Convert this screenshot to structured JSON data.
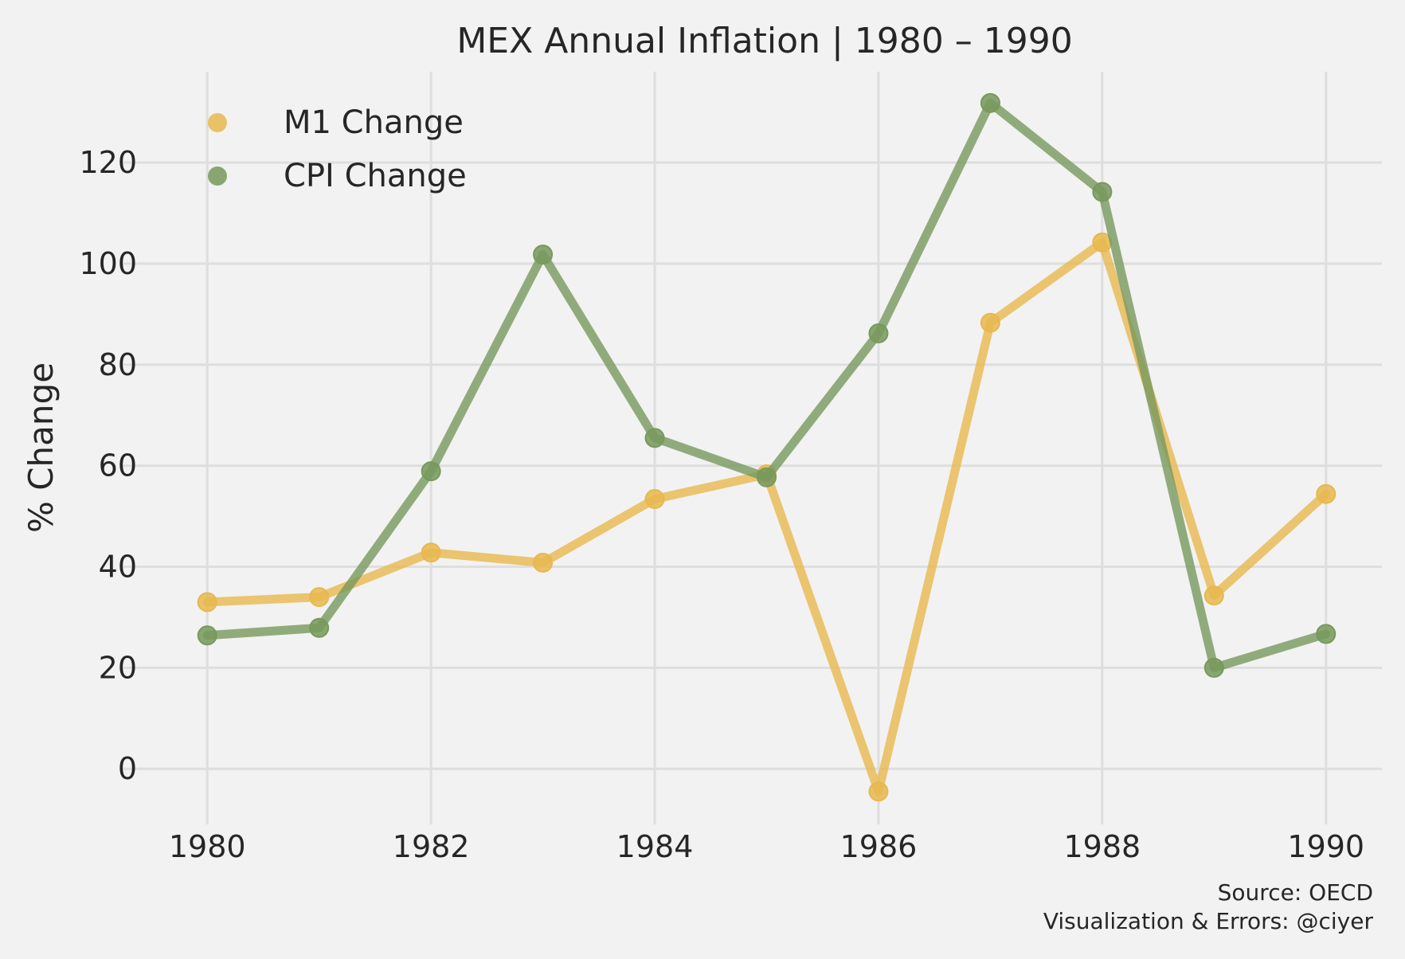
{
  "chart_data": {
    "type": "line",
    "title": "MEX Annual Inflation | 1980 – 1990",
    "xlabel": "",
    "ylabel": "% Change",
    "x": [
      1980,
      1981,
      1982,
      1983,
      1984,
      1985,
      1986,
      1987,
      1988,
      1989,
      1990
    ],
    "xlim": [
      1979.5,
      1990.5
    ],
    "ylim": [
      -11,
      138
    ],
    "x_ticks": [
      "1980",
      "1982",
      "1984",
      "1986",
      "1988",
      "1990"
    ],
    "y_ticks": [
      "0",
      "20",
      "40",
      "60",
      "80",
      "100",
      "120"
    ],
    "grid": true,
    "legend_position": "top-left",
    "series": [
      {
        "name": "M1 Change",
        "color": "#e8b84f",
        "values": [
          33.0,
          34.0,
          42.8,
          40.8,
          53.4,
          58.3,
          -4.5,
          88.3,
          104.2,
          34.3,
          54.4
        ]
      },
      {
        "name": "CPI Change",
        "color": "#77995c",
        "values": [
          26.4,
          27.9,
          58.9,
          101.8,
          65.5,
          57.7,
          86.2,
          131.8,
          114.2,
          20.0,
          26.7
        ]
      }
    ],
    "annotations": [
      "Source: OECD",
      "Visualization & Errors: @ciyer"
    ]
  }
}
